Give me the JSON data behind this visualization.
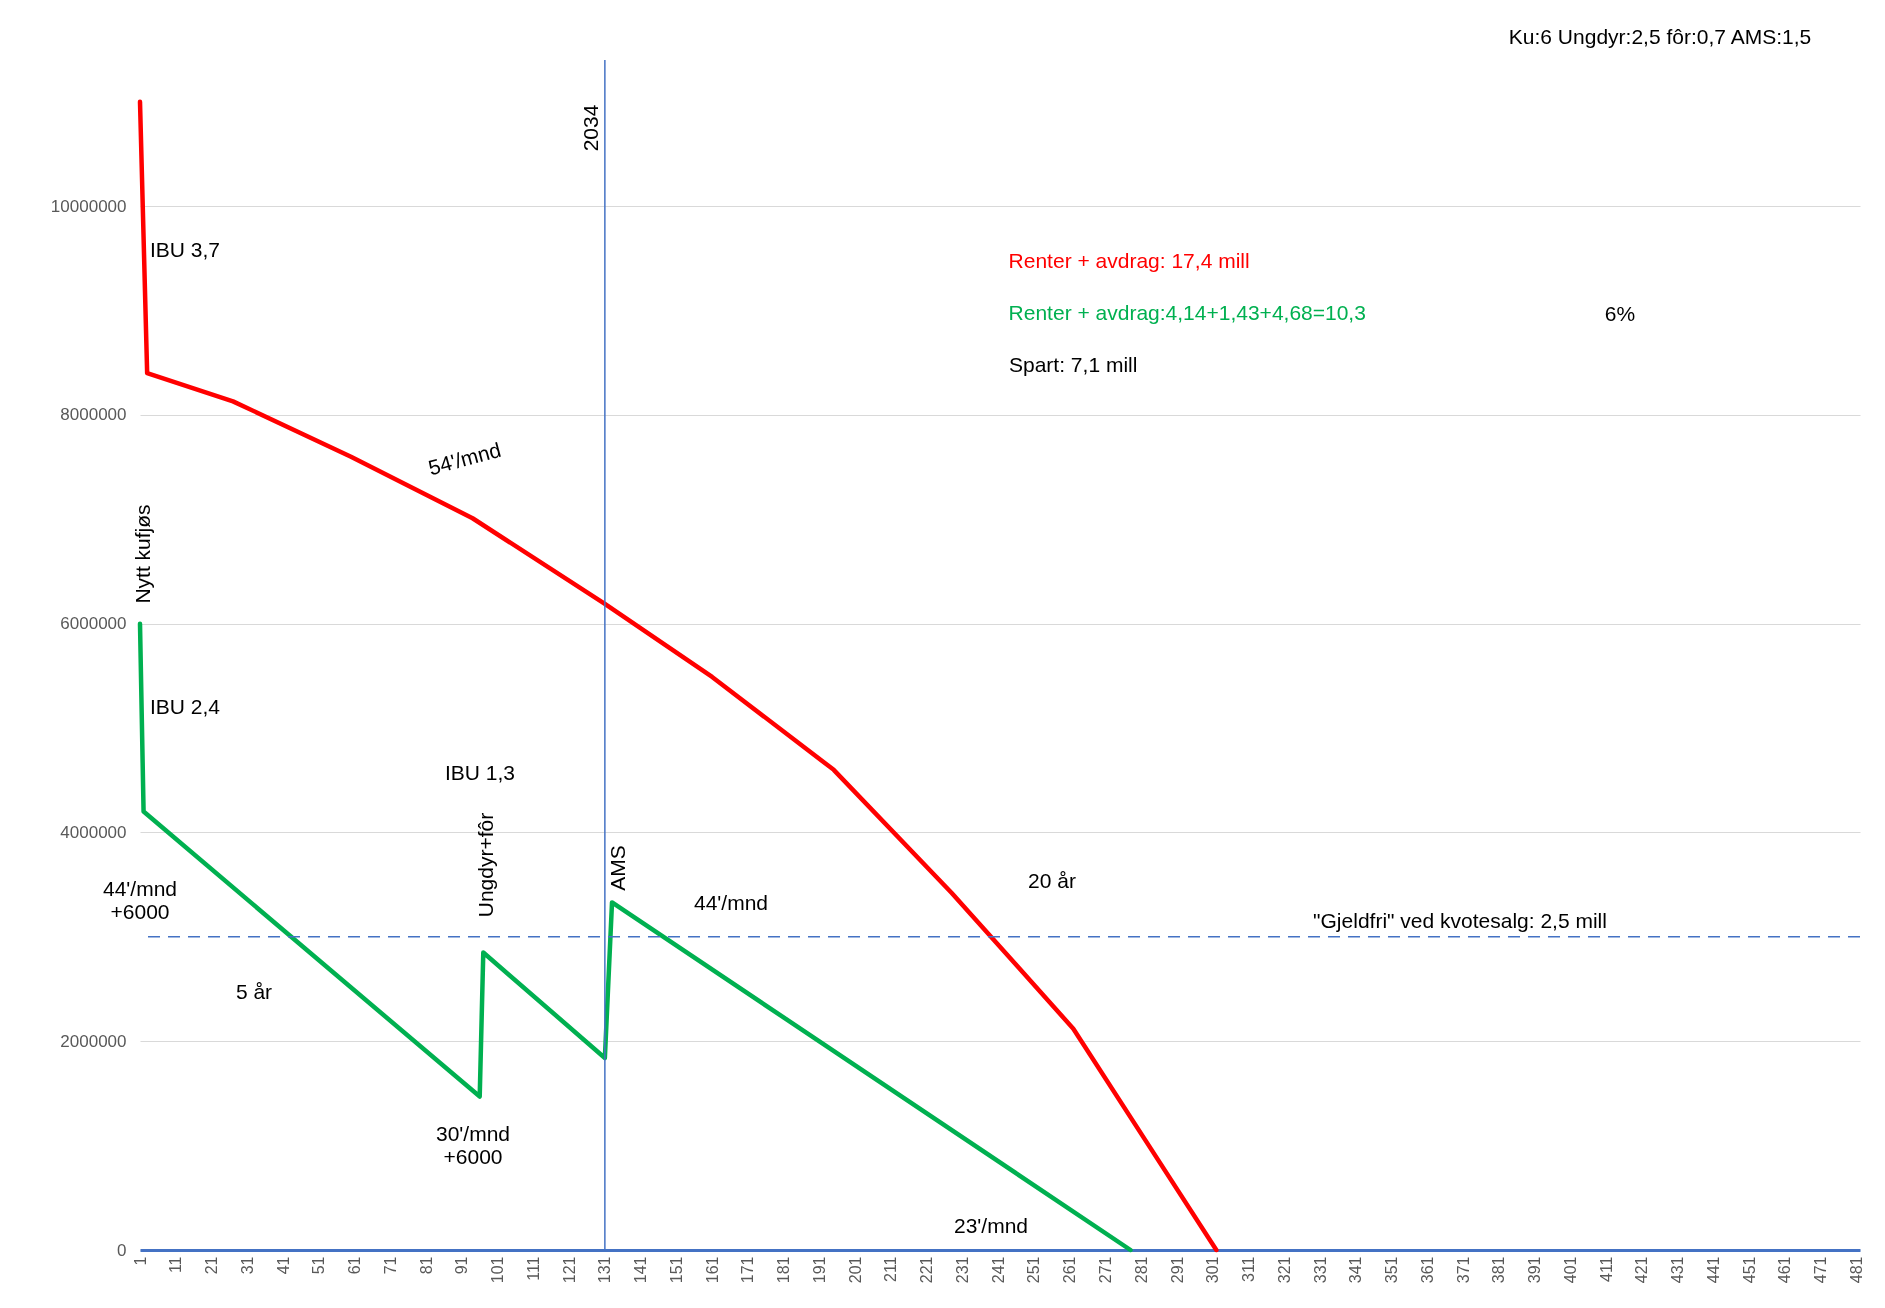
{
  "chart_data": {
    "type": "line",
    "xlim": [
      1,
      482
    ],
    "xticks": [
      1,
      11,
      21,
      31,
      41,
      51,
      61,
      71,
      81,
      91,
      101,
      111,
      121,
      131,
      141,
      151,
      161,
      171,
      181,
      191,
      201,
      211,
      221,
      231,
      241,
      251,
      261,
      271,
      281,
      291,
      301,
      311,
      321,
      331,
      341,
      351,
      361,
      371,
      381,
      391,
      401,
      411,
      421,
      431,
      441,
      451,
      461,
      471,
      481
    ],
    "ylim": [
      0,
      11400000
    ],
    "yticks": [
      0,
      2000000,
      4000000,
      6000000,
      8000000,
      10000000
    ],
    "grid": "y",
    "legend": "top right",
    "line_style": "solid",
    "series": [
      {
        "name": "Renter + avdrag: 17,4 mill",
        "color": "#ff0000",
        "x": [
          1,
          3,
          27,
          60,
          94,
          131,
          161,
          195,
          228,
          262,
          282,
          302
        ],
        "values": [
          11000000,
          8400000,
          8130000,
          7600000,
          7010000,
          6190000,
          5490000,
          4600000,
          3420000,
          2120000,
          1060000,
          0
        ]
      },
      {
        "name": "Renter + avdrag:4,14+1,43+4,68=10,3",
        "color": "#00b050",
        "x": [
          1,
          2,
          96,
          97,
          131,
          133,
          278
        ],
        "values": [
          6000000,
          4200000,
          1470000,
          2850000,
          1840000,
          3330000,
          0
        ]
      }
    ],
    "ref_lines": [
      {
        "axis": "x",
        "value": 131,
        "color": "#4472c4",
        "line_style": "solid"
      },
      {
        "axis": "y",
        "value": 3000000,
        "color": "#4472c4",
        "line_style": "dashed"
      }
    ],
    "annotations": [
      "Ku:6  Ungdyr:2,5  fôr:0,7   AMS:1,5",
      "Spart: 7,1 mill",
      "6%",
      "2034",
      "\"Gjeldfri\" ved kvotesalg: 2,5 mill",
      "IBU 3,7",
      "54'/mnd",
      "Nytt kufjøs",
      "IBU 2,4",
      "IBU 1,3",
      "44'/mnd\n+6000",
      "5 år",
      "Ungdyr+fôr",
      "30'/mnd\n+6000",
      "AMS",
      "44'/mnd",
      "20 år",
      "23'/mnd"
    ]
  }
}
